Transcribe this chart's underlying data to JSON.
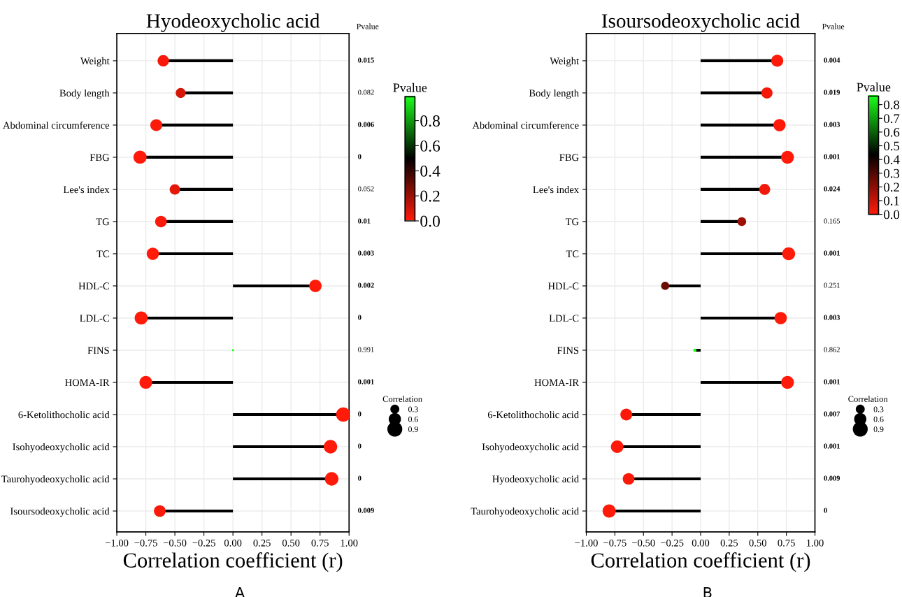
{
  "chart_data": [
    {
      "type": "lollipop",
      "orientation": "horizontal",
      "title": "Hyodeoxycholic acid",
      "xlabel": "Correlation coefficient (r)",
      "categories": [
        "Weight",
        "Body length",
        "Abdominal circumference",
        "FBG",
        "Lee's index",
        "TG",
        "TC",
        "HDL-C",
        "LDL-C",
        "FINS",
        "HOMA-IR",
        "6-Ketolithocholic acid",
        "Isohyodeoxycholic acid",
        "Taurohyodeoxycholic acid",
        "Isoursodeoxycholic acid"
      ],
      "values": [
        -0.6,
        -0.45,
        -0.66,
        -0.8,
        -0.5,
        -0.62,
        -0.69,
        0.71,
        -0.79,
        0.0,
        -0.75,
        0.95,
        0.84,
        0.85,
        -0.63
      ],
      "sizes": [
        0.6,
        0.45,
        0.66,
        0.8,
        0.5,
        0.62,
        0.69,
        0.71,
        0.79,
        0.02,
        0.75,
        0.95,
        0.84,
        0.85,
        0.63
      ],
      "cvalues": [
        0.015,
        0.082,
        0.006,
        0,
        0.052,
        0.01,
        0.003,
        0.002,
        0,
        0.991,
        0.001,
        0,
        0,
        0,
        0.009
      ],
      "clim": [
        0,
        0.991
      ],
      "cticks": [
        {
          "value": 0,
          "label": "0.0"
        },
        {
          "value": 0.2,
          "label": "0.2"
        },
        {
          "value": 0.4,
          "label": "0.4"
        },
        {
          "value": 0.6,
          "label": "0.6"
        },
        {
          "value": 0.8,
          "label": "0.8"
        }
      ],
      "clabel": "Pvalue",
      "legend_title": "Correlation",
      "size_legend": [
        0.3,
        0.6,
        0.9
      ],
      "xlim": [
        -1,
        1
      ],
      "xticks": [
        {
          "value": -1,
          "label": "−1.00"
        },
        {
          "value": -0.75,
          "label": "−0.75"
        },
        {
          "value": -0.5,
          "label": "−0.50"
        },
        {
          "value": -0.25,
          "label": "−0.25"
        },
        {
          "value": 0,
          "label": "0.00"
        },
        {
          "value": 0.25,
          "label": "0.25"
        },
        {
          "value": 0.5,
          "label": "0.50"
        },
        {
          "value": 0.75,
          "label": "0.75"
        },
        {
          "value": 1,
          "label": "1.00"
        }
      ],
      "grid": true,
      "marker": "circle",
      "annotations": [
        "Pvalue",
        "A",
        "0.015",
        "0.082",
        "0.006",
        "0",
        "0.052",
        "0.01",
        "0.003",
        "0.002",
        "0",
        "0.991",
        "0.001",
        "0",
        "0",
        "0",
        "0.009"
      ]
    },
    {
      "type": "lollipop",
      "orientation": "horizontal",
      "title": "Isoursodeoxycholic acid",
      "xlabel": "Correlation coefficient (r)",
      "categories": [
        "Weight",
        "Body length",
        "Abdominal circumference",
        "FBG",
        "Lee's index",
        "TG",
        "TC",
        "HDL-C",
        "LDL-C",
        "FINS",
        "HOMA-IR",
        "6-Ketolithocholic acid",
        "Isohyodeoxycholic acid",
        "Hyodeoxycholic acid",
        "Taurohyodeoxycholic acid"
      ],
      "values": [
        0.67,
        0.58,
        0.69,
        0.76,
        0.56,
        0.36,
        0.77,
        -0.31,
        0.7,
        -0.05,
        0.76,
        -0.65,
        -0.73,
        -0.63,
        -0.8
      ],
      "sizes": [
        0.67,
        0.58,
        0.69,
        0.76,
        0.56,
        0.36,
        0.77,
        0.31,
        0.7,
        0.05,
        0.76,
        0.65,
        0.73,
        0.63,
        0.8
      ],
      "cvalues": [
        0.004,
        0.019,
        0.003,
        0.001,
        0.024,
        0.165,
        0.001,
        0.251,
        0.003,
        0.862,
        0.001,
        0.007,
        0.001,
        0.009,
        0
      ],
      "clim": [
        0,
        0.862
      ],
      "cticks": [
        {
          "value": 0,
          "label": "0.0"
        },
        {
          "value": 0.1,
          "label": "0.1"
        },
        {
          "value": 0.2,
          "label": "0.2"
        },
        {
          "value": 0.3,
          "label": "0.3"
        },
        {
          "value": 0.4,
          "label": "0.4"
        },
        {
          "value": 0.5,
          "label": "0.5"
        },
        {
          "value": 0.6,
          "label": "0.6"
        },
        {
          "value": 0.7,
          "label": "0.7"
        },
        {
          "value": 0.8,
          "label": "0.8"
        }
      ],
      "clabel": "Pvalue",
      "legend_title": "Correlation",
      "size_legend": [
        0.3,
        0.6,
        0.9
      ],
      "xlim": [
        -1,
        1
      ],
      "xticks": [
        {
          "value": -1,
          "label": "−1.00"
        },
        {
          "value": -0.75,
          "label": "−0.75"
        },
        {
          "value": -0.5,
          "label": "−0.50"
        },
        {
          "value": -0.25,
          "label": "−0.25"
        },
        {
          "value": 0,
          "label": "0.00"
        },
        {
          "value": 0.25,
          "label": "0.25"
        },
        {
          "value": 0.5,
          "label": "0.50"
        },
        {
          "value": 0.75,
          "label": "0.75"
        },
        {
          "value": 1,
          "label": "1.00"
        }
      ],
      "grid": true,
      "marker": "circle",
      "annotations": [
        "Pvalue",
        "B",
        "0.004",
        "0.019",
        "0.003",
        "0.001",
        "0.024",
        "0.165",
        "0.001",
        "0.251",
        "0.003",
        "0.862",
        "0.001",
        "0.007",
        "0.001",
        "0.009",
        "0"
      ]
    }
  ]
}
